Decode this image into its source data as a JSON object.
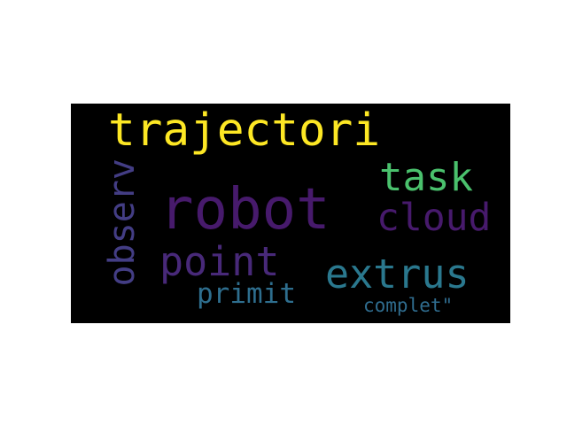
{
  "word_cloud": {
    "background": "#000000",
    "words": [
      {
        "text": "robot",
        "color": "#471a6c",
        "orientation": "horizontal"
      },
      {
        "text": "trajectori",
        "color": "#fde724",
        "orientation": "horizontal"
      },
      {
        "text": "task",
        "color": "#4ac16d",
        "orientation": "horizontal"
      },
      {
        "text": "cloud",
        "color": "#471a6c",
        "orientation": "horizontal"
      },
      {
        "text": "observ",
        "color": "#433d84",
        "orientation": "vertical"
      },
      {
        "text": "point",
        "color": "#482979",
        "orientation": "horizontal"
      },
      {
        "text": "extrus",
        "color": "#2a788e",
        "orientation": "horizontal"
      },
      {
        "text": "primit",
        "color": "#2e6e8e",
        "orientation": "horizontal"
      },
      {
        "text": "complet\"",
        "color": "#2f6c8e",
        "orientation": "horizontal"
      }
    ]
  }
}
